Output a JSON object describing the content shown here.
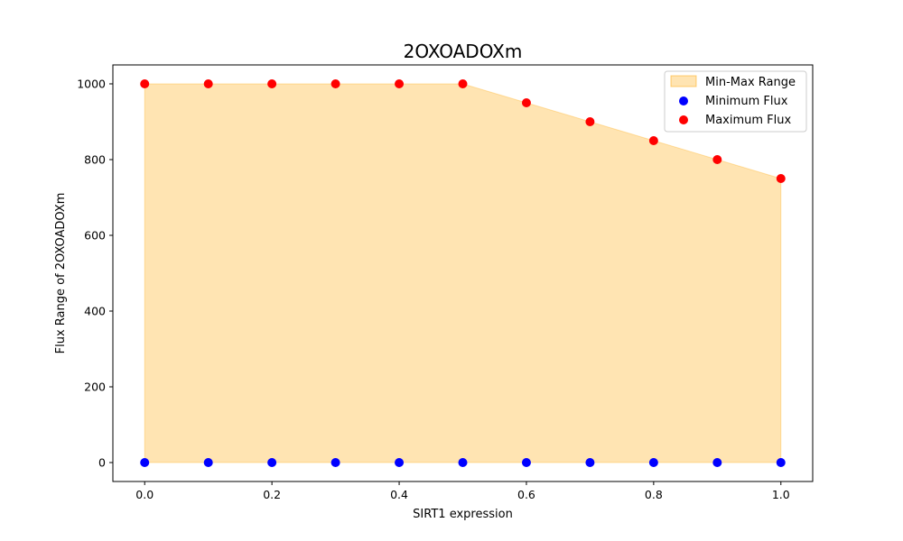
{
  "chart_data": {
    "type": "scatter",
    "title": "2OXOADOXm",
    "xlabel": "SIRT1 expression",
    "ylabel": "Flux Range of 2OXOADOXm",
    "x": [
      0.0,
      0.1,
      0.2,
      0.3,
      0.4,
      0.5,
      0.6,
      0.7,
      0.8,
      0.9,
      1.0
    ],
    "series": [
      {
        "name": "Minimum Flux",
        "values": [
          0,
          0,
          0,
          0,
          0,
          0,
          0,
          0,
          0,
          0,
          0
        ],
        "color": "#0000ff"
      },
      {
        "name": "Maximum Flux",
        "values": [
          1000,
          1000,
          1000,
          1000,
          1000,
          1000,
          950,
          900,
          850,
          800,
          750
        ],
        "color": "#ff0000"
      }
    ],
    "fill": {
      "name": "Min-Max Range",
      "color": "#ffa500",
      "opacity": 0.3
    },
    "xlim": [
      -0.05,
      1.05
    ],
    "ylim": [
      -50,
      1050
    ],
    "xticks": [
      0.0,
      0.2,
      0.4,
      0.6,
      0.8,
      1.0
    ],
    "xtick_labels": [
      "0.0",
      "0.2",
      "0.4",
      "0.6",
      "0.8",
      "1.0"
    ],
    "yticks": [
      0,
      200,
      400,
      600,
      800,
      1000
    ],
    "ytick_labels": [
      "0",
      "200",
      "400",
      "600",
      "800",
      "1000"
    ],
    "grid": false,
    "legend_position": "top-right",
    "legend": [
      "Min-Max Range",
      "Minimum Flux",
      "Maximum Flux"
    ]
  }
}
